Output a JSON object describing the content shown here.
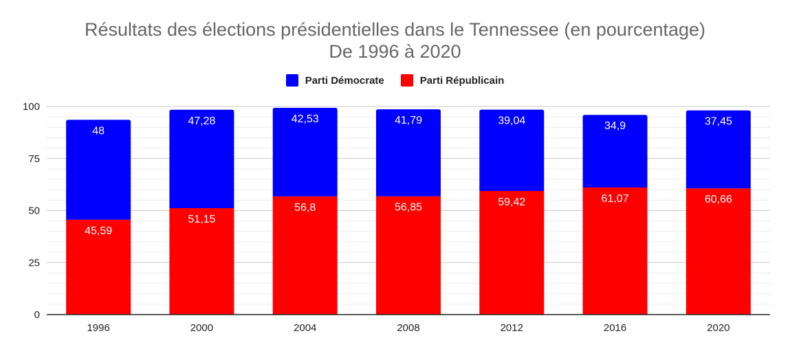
{
  "chart_data": {
    "type": "bar",
    "stacked": true,
    "title": "Résultats des élections présidentielles dans le Tennessee (en pourcentage)",
    "subtitle": "De 1996 à 2020",
    "categories": [
      "1996",
      "2000",
      "2004",
      "2008",
      "2012",
      "2016",
      "2020"
    ],
    "series": [
      {
        "name": "Parti Républicain",
        "color": "#ff0000",
        "values": [
          45.59,
          51.15,
          56.8,
          56.85,
          59.42,
          61.07,
          60.66
        ],
        "labels": [
          "45,59",
          "51,15",
          "56,8",
          "56,85",
          "59,42",
          "61,07",
          "60,66"
        ]
      },
      {
        "name": "Parti Démocrate",
        "color": "#0000ff",
        "values": [
          48,
          47.28,
          42.53,
          41.79,
          39.04,
          34.9,
          37.45
        ],
        "labels": [
          "48",
          "47,28",
          "42,53",
          "41,79",
          "39,04",
          "34,9",
          "37,45"
        ]
      }
    ],
    "legend": [
      "Parti Démocrate",
      "Parti Républicain"
    ],
    "legend_position": "top",
    "ylim": [
      0,
      100
    ],
    "yticks": [
      0,
      25,
      50,
      75,
      100
    ],
    "ytick_labels": [
      "0",
      "25",
      "50",
      "75",
      "100"
    ],
    "grid": true,
    "xlabel": "",
    "ylabel": ""
  }
}
